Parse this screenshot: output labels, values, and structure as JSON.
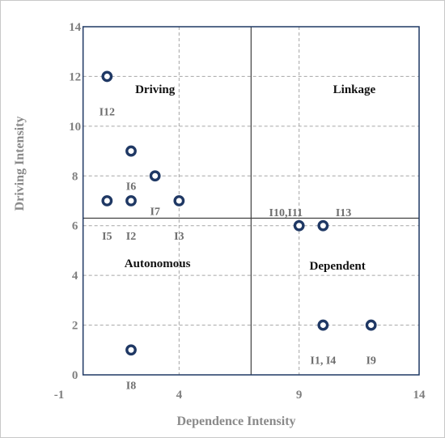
{
  "chart_data": {
    "type": "scatter",
    "xlabel": "Dependence Intensity",
    "ylabel": "Driving Intensity",
    "xlim": [
      -1,
      14
    ],
    "ylim": [
      0,
      14
    ],
    "x_ticks": [
      -1,
      4,
      9,
      14
    ],
    "y_ticks": [
      0,
      2,
      4,
      6,
      8,
      10,
      12,
      14
    ],
    "x_ticks_labels": [
      "-1",
      "4",
      "9",
      "14"
    ],
    "y_ticks_labels": [
      "0",
      "2",
      "4",
      "6",
      "8",
      "10",
      "12",
      "14"
    ],
    "grid": true,
    "dividers": {
      "x": 7,
      "y": 6.3
    },
    "marker_color": "#1f3864",
    "quadrants": [
      {
        "name": "Driving",
        "x": 3,
        "y": 11.5
      },
      {
        "name": "Linkage",
        "x": 11.3,
        "y": 11.5
      },
      {
        "name": "Autonomous",
        "x": 3.1,
        "y": 4.5
      },
      {
        "name": "Dependent",
        "x": 10.6,
        "y": 4.4
      }
    ],
    "points": [
      {
        "label": "I12",
        "x": 1,
        "y": 12,
        "label_dx": 0,
        "label_dy": -1.4
      },
      {
        "label": "I6",
        "x": 2,
        "y": 9,
        "label_dx": 0,
        "label_dy": -1.4
      },
      {
        "label": "I7",
        "x": 3,
        "y": 8,
        "label_dx": 0,
        "label_dy": -1.4
      },
      {
        "label": "I5",
        "x": 1,
        "y": 7,
        "label_dx": 0,
        "label_dy": -1.4
      },
      {
        "label": "I2",
        "x": 2,
        "y": 7,
        "label_dx": 0,
        "label_dy": -1.4
      },
      {
        "label": "I3",
        "x": 4,
        "y": 7,
        "label_dx": 0,
        "label_dy": -1.4
      },
      {
        "label": "I10,I11",
        "x": 9,
        "y": 6,
        "label_dx": -0.55,
        "label_dy": 0.55
      },
      {
        "label": "I13",
        "x": 10,
        "y": 6,
        "label_dx": 0.85,
        "label_dy": 0.55
      },
      {
        "label": "I1, I4",
        "x": 10,
        "y": 2,
        "label_dx": 0,
        "label_dy": -1.4
      },
      {
        "label": "I9",
        "x": 12,
        "y": 2,
        "label_dx": 0,
        "label_dy": -1.4
      },
      {
        "label": "I8",
        "x": 2,
        "y": 1,
        "label_dx": 0,
        "label_dy": -1.4
      }
    ]
  }
}
